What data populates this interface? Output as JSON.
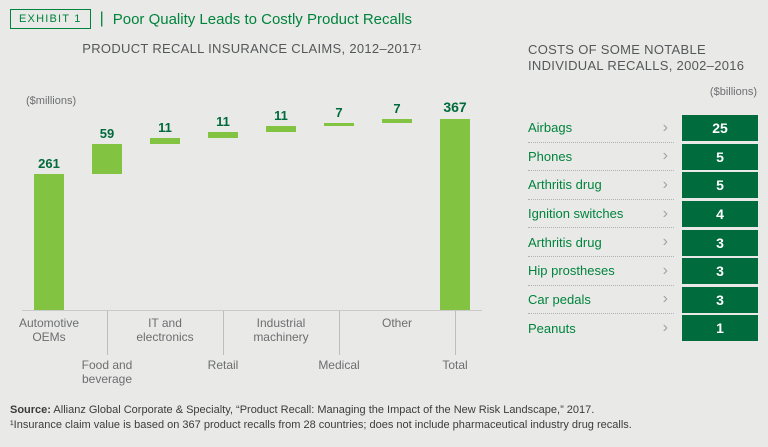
{
  "exhibit": {
    "tag": "Exhibit 1",
    "separator": "|",
    "title": "Poor Quality Leads to Costly Product Recalls"
  },
  "colors": {
    "accent_green": "#00843D",
    "bar_green": "#82C341",
    "value_box_green": "#006B3C",
    "background": "#E9E9E7"
  },
  "chart_data": {
    "type": "bar",
    "subtype": "waterfall",
    "title": "PRODUCT RECALL INSURANCE CLAIMS, 2012–2017¹",
    "unit_label": "($millions)",
    "categories": [
      "Automotive OEMs",
      "Food and beverage",
      "IT and electronics",
      "Retail",
      "Industrial machinery",
      "Medical",
      "Other",
      "Total"
    ],
    "values": [
      261,
      59,
      11,
      11,
      11,
      7,
      7,
      367
    ],
    "total_index": 7,
    "ylim": [
      0,
      367
    ],
    "grid": false,
    "legend": "none"
  },
  "recalls_panel": {
    "title_line1": "COSTS OF SOME NOTABLE",
    "title_line2": "INDIVIDUAL RECALLS, 2002–2016",
    "unit_label": "($billions)",
    "chevron": "›",
    "rows": [
      {
        "label": "Airbags",
        "value": 25
      },
      {
        "label": "Phones",
        "value": 5
      },
      {
        "label": "Arthritis drug",
        "value": 5
      },
      {
        "label": "Ignition switches",
        "value": 4
      },
      {
        "label": "Arthritis drug",
        "value": 3
      },
      {
        "label": "Hip prostheses",
        "value": 3
      },
      {
        "label": "Car pedals",
        "value": 3
      },
      {
        "label": "Peanuts",
        "value": 1
      }
    ]
  },
  "footer": {
    "source_label": "Source:",
    "source_text": " Allianz Global Corporate & Specialty, “Product Recall: Managing the Impact of the New Risk Landscape,” 2017.",
    "footnote": "¹Insurance claim value is based on 367 product recalls from 28 countries; does not include pharmaceutical industry drug recalls."
  }
}
